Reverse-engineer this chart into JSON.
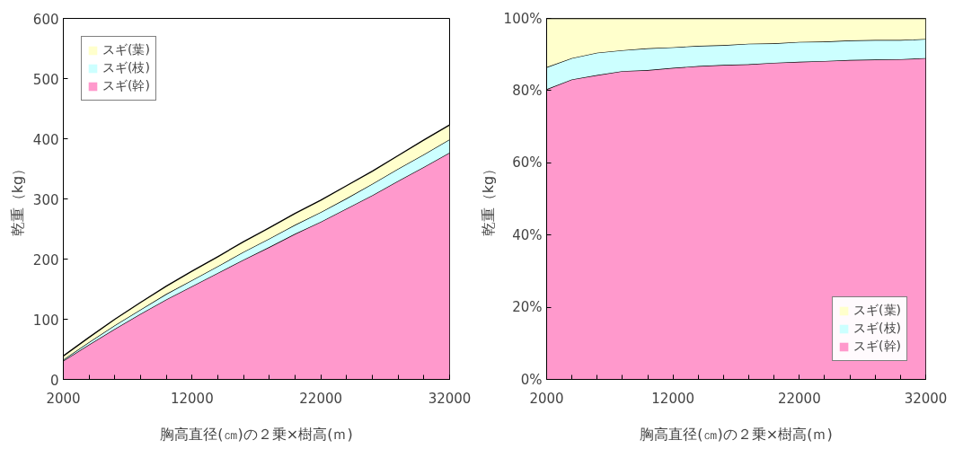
{
  "chart_data": [
    {
      "type": "area",
      "stacked": true,
      "xlabel": "胸高直径(㎝)の２乗×樹高(ｍ)",
      "ylabel": "乾重（kg）",
      "x": [
        2000,
        4000,
        6000,
        8000,
        10000,
        12000,
        14000,
        16000,
        18000,
        20000,
        22000,
        24000,
        26000,
        28000,
        30000,
        32000
      ],
      "series": [
        {
          "name": "スギ(幹)",
          "color": "#ff99cc",
          "values": [
            31,
            58,
            84,
            109,
            133,
            155,
            177,
            199,
            220,
            242,
            262,
            284,
            306,
            330,
            353,
            377
          ]
        },
        {
          "name": "スギ(枝)",
          "color": "#ccffff",
          "values": [
            2,
            4,
            6,
            7,
            9,
            10,
            11,
            13,
            14,
            15,
            16,
            17,
            19,
            20,
            21,
            22
          ]
        },
        {
          "name": "スギ(葉)",
          "color": "#ffffcc",
          "values": [
            6,
            8,
            10,
            12,
            13,
            15,
            16,
            17,
            18,
            19,
            20,
            21,
            21,
            22,
            24,
            24
          ]
        }
      ],
      "xlim": [
        2000,
        32000
      ],
      "xticks": [
        2000,
        12000,
        22000,
        32000
      ],
      "ylim": [
        0,
        600
      ],
      "yticks": [
        0,
        100,
        200,
        300,
        400,
        500,
        600
      ],
      "grid": false,
      "legend": "top left"
    },
    {
      "type": "area",
      "stacked": true,
      "xlabel": "胸高直径(㎝)の２乗×樹高(ｍ)",
      "ylabel": "乾重（kg）",
      "x": [
        2000,
        4000,
        6000,
        8000,
        10000,
        12000,
        14000,
        16000,
        18000,
        20000,
        22000,
        24000,
        26000,
        28000,
        30000,
        32000
      ],
      "series": [
        {
          "name": "スギ(幹)",
          "color": "#ff99cc",
          "values": [
            80.4,
            83.1,
            84.3,
            85.4,
            85.7,
            86.3,
            86.8,
            87.1,
            87.3,
            87.7,
            88.0,
            88.2,
            88.5,
            88.6,
            88.7,
            89.0
          ]
        },
        {
          "name": "スギ(枝)",
          "color": "#ccffff",
          "values": [
            6.1,
            5.9,
            6.2,
            5.8,
            6.0,
            5.7,
            5.6,
            5.5,
            5.7,
            5.4,
            5.5,
            5.4,
            5.4,
            5.4,
            5.3,
            5.3
          ]
        },
        {
          "name": "スギ(葉)",
          "color": "#ffffcc",
          "values": [
            13.5,
            11.0,
            9.5,
            8.8,
            8.3,
            8.0,
            7.6,
            7.4,
            7.0,
            6.9,
            6.5,
            6.4,
            6.1,
            6.0,
            6.0,
            5.7
          ]
        }
      ],
      "xlim": [
        2000,
        32000
      ],
      "xticks": [
        2000,
        12000,
        22000,
        32000
      ],
      "ylim": [
        0,
        100
      ],
      "yticks": [
        {
          "value": 0,
          "label": "0%"
        },
        {
          "value": 20,
          "label": "20%"
        },
        {
          "value": 40,
          "label": "40%"
        },
        {
          "value": 60,
          "label": "60%"
        },
        {
          "value": 80,
          "label": "80%"
        },
        {
          "value": 100,
          "label": "100%"
        }
      ],
      "grid": false,
      "legend": "bottom right"
    }
  ]
}
